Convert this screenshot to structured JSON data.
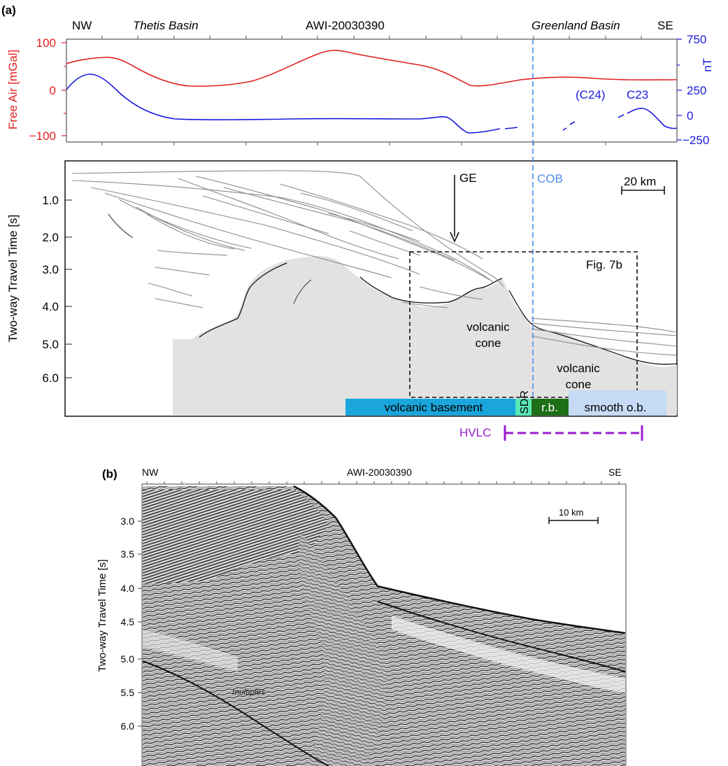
{
  "panel_a": {
    "label": "(a)",
    "header": {
      "nw": "NW",
      "west_basin": "Thetis Basin",
      "profile": "AWI-20030390",
      "east_basin": "Greenland Basin",
      "se": "SE"
    },
    "gravity_axis": {
      "title": "Free Air [mGal]",
      "ticks": [
        "100",
        "0",
        "−100"
      ],
      "color": "#e02020"
    },
    "magnetic_axis": {
      "title": "nT",
      "ticks": [
        "750",
        "250",
        "0",
        "−250"
      ],
      "color": "#1a1adf"
    },
    "anomaly_labels": {
      "c24": "(C24)",
      "c23": "C23"
    },
    "section": {
      "y_axis_title": "Two-way Travel Time [s]",
      "y_ticks": [
        "1.0",
        "2.0",
        "3.0",
        "4.0",
        "5.0",
        "6.0"
      ],
      "ge_label": "GE",
      "cob_label": "COB",
      "cob_color": "#4f8ff0",
      "scale_label": "20 km",
      "inset_label": "Fig. 7b",
      "cone_label_1a": "volcanic",
      "cone_label_1b": "cone",
      "cone_label_2a": "volcanic",
      "cone_label_2b": "cone"
    },
    "crust_bar": {
      "volcanic_basement": {
        "label": "volcanic basement",
        "color": "#1aa6dc"
      },
      "sdr": {
        "label": "SDR",
        "color": "#57e8b6"
      },
      "rb": {
        "label": "r.b.",
        "color": "#1e6e18"
      },
      "smooth_ob": {
        "label": "smooth o.b.",
        "color": "#c5dbf5"
      }
    },
    "hvlc": {
      "label": "HVLC",
      "color": "#9a1ccd"
    }
  },
  "panel_b": {
    "label": "(b)",
    "nw": "NW",
    "profile": "AWI-20030390",
    "se": "SE",
    "y_axis_title": "Two-way Travel Time [s]",
    "y_ticks": [
      "3.0",
      "3.5",
      "4.0",
      "4.5",
      "5.0",
      "5.5",
      "6.0"
    ],
    "scale_label": "10 km",
    "multiples_label": "multiples"
  }
}
